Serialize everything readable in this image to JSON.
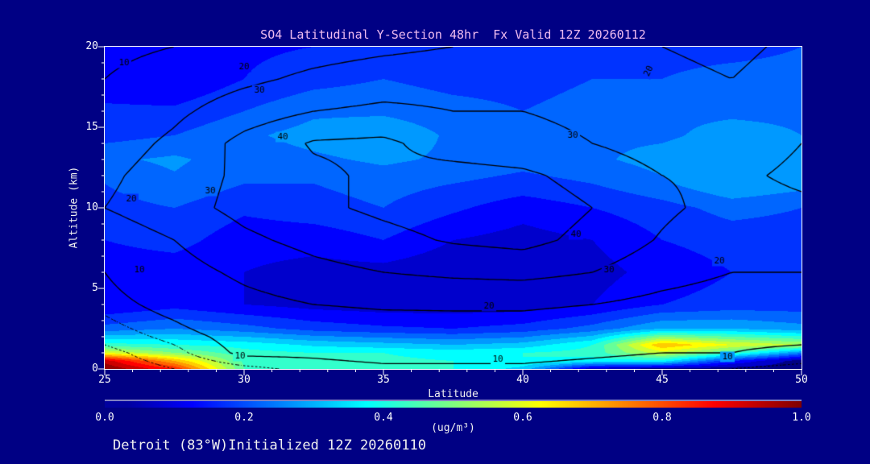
{
  "colors": {
    "background": "#000084",
    "title": "#F0BCF0",
    "text": "#F0F0F0",
    "frame": "#FFFFFF",
    "contour_line": "#000000"
  },
  "header": {
    "title": "SO4 Latitudinal Y-Section 48hr  Fx Valid 12Z 20260112"
  },
  "footer": {
    "text": "Detroit (83°W)Initialized 12Z 20260110"
  },
  "chart_data": {
    "type": "heatmap",
    "title": "SO4 Latitudinal Y-Section 48hr  Fx Valid 12Z 20260112",
    "xlabel": "Latitude",
    "ylabel": "Altitude (km)",
    "xlim": [
      25,
      50
    ],
    "ylim": [
      0,
      20
    ],
    "x_ticks": [
      "25",
      "30",
      "35",
      "40",
      "45",
      "50"
    ],
    "x_tick_values": [
      25,
      30,
      35,
      40,
      45,
      50
    ],
    "x_minor_step": 1,
    "y_ticks": [
      "0",
      "5",
      "10",
      "15",
      "20"
    ],
    "y_tick_values": [
      0,
      5,
      10,
      15,
      20
    ],
    "y_minor_step": 1,
    "grid": false,
    "colorbar": {
      "min": 0.0,
      "max": 1.0,
      "ticks": [
        "0.0",
        "0.2",
        "0.4",
        "0.6",
        "0.8",
        "1.0"
      ],
      "tick_values": [
        0.0,
        0.2,
        0.4,
        0.6,
        0.8,
        1.0
      ],
      "units": "(ug/m³)",
      "palette": "jet"
    },
    "fill_field": {
      "comment_units": "SO4 concentration ug/m3, jet colormap 0-1, bottom-right low values = terrain mask",
      "lats": [
        25,
        27.5,
        30,
        32.5,
        35,
        37.5,
        40,
        42.5,
        45,
        47.5,
        50
      ],
      "alts": [
        0,
        0.5,
        1,
        1.5,
        2.5,
        4,
        6,
        8,
        10,
        11.5,
        13,
        14.5,
        16,
        18,
        20
      ],
      "values": [
        [
          1.0,
          0.85,
          0.45,
          0.42,
          0.41,
          0.4,
          0.33,
          0.06,
          0.02,
          0.02,
          0.02
        ],
        [
          0.93,
          0.7,
          0.44,
          0.42,
          0.41,
          0.4,
          0.4,
          0.38,
          0.38,
          0.15,
          0.02
        ],
        [
          0.6,
          0.5,
          0.42,
          0.4,
          0.4,
          0.38,
          0.4,
          0.42,
          0.58,
          0.44,
          0.25
        ],
        [
          0.42,
          0.4,
          0.38,
          0.34,
          0.32,
          0.3,
          0.32,
          0.4,
          0.7,
          0.6,
          0.55
        ],
        [
          0.22,
          0.25,
          0.22,
          0.18,
          0.16,
          0.15,
          0.17,
          0.22,
          0.3,
          0.3,
          0.27
        ],
        [
          0.1,
          0.13,
          0.1,
          0.08,
          0.07,
          0.07,
          0.07,
          0.1,
          0.15,
          0.17,
          0.17
        ],
        [
          0.12,
          0.12,
          0.1,
          0.08,
          0.08,
          0.06,
          0.06,
          0.08,
          0.12,
          0.15,
          0.15
        ],
        [
          0.15,
          0.17,
          0.12,
          0.12,
          0.15,
          0.1,
          0.08,
          0.1,
          0.15,
          0.17,
          0.17
        ],
        [
          0.18,
          0.2,
          0.16,
          0.18,
          0.2,
          0.16,
          0.12,
          0.15,
          0.18,
          0.22,
          0.2
        ],
        [
          0.2,
          0.24,
          0.2,
          0.2,
          0.22,
          0.2,
          0.18,
          0.2,
          0.24,
          0.3,
          0.27
        ],
        [
          0.24,
          0.26,
          0.22,
          0.24,
          0.26,
          0.24,
          0.22,
          0.24,
          0.27,
          0.3,
          0.29
        ],
        [
          0.18,
          0.2,
          0.24,
          0.27,
          0.29,
          0.24,
          0.24,
          0.24,
          0.24,
          0.27,
          0.25
        ],
        [
          0.16,
          0.16,
          0.2,
          0.24,
          0.24,
          0.22,
          0.2,
          0.22,
          0.24,
          0.24,
          0.24
        ],
        [
          0.12,
          0.1,
          0.15,
          0.18,
          0.2,
          0.18,
          0.18,
          0.2,
          0.2,
          0.22,
          0.22
        ],
        [
          0.1,
          0.1,
          0.14,
          0.15,
          0.16,
          0.16,
          0.16,
          0.18,
          0.18,
          0.18,
          0.2
        ]
      ]
    },
    "contour_field": {
      "lats": [
        25,
        27.5,
        30,
        32.5,
        35,
        37.5,
        40,
        42.5,
        45,
        47.5,
        50
      ],
      "alts": [
        0,
        1,
        2,
        4,
        6,
        8,
        10,
        12,
        14,
        16,
        18,
        20
      ],
      "values": [
        [
          2,
          4,
          6,
          8,
          9,
          9,
          9,
          8,
          7,
          7,
          6
        ],
        [
          3,
          6,
          11,
          11,
          12,
          12,
          12,
          11,
          10,
          10,
          9
        ],
        [
          5,
          8,
          12,
          14,
          15,
          16,
          16,
          15,
          13,
          11,
          11
        ],
        [
          8,
          12,
          17,
          20,
          21,
          21,
          21,
          20,
          17,
          15,
          15
        ],
        [
          10,
          16,
          22,
          27,
          30,
          32,
          33,
          30,
          24,
          20,
          20
        ],
        [
          14,
          20,
          28,
          33,
          37,
          41,
          43,
          37,
          29,
          22,
          24
        ],
        [
          20,
          26,
          33,
          38,
          42,
          45,
          46,
          40,
          32,
          26,
          28
        ],
        [
          18,
          25,
          32,
          38,
          42,
          44,
          42,
          36,
          30,
          28,
          32
        ],
        [
          15,
          22,
          33,
          41,
          42,
          35,
          33,
          30,
          26,
          25,
          30
        ],
        [
          12,
          18,
          25,
          30,
          32,
          30,
          30,
          28,
          24,
          22,
          26
        ],
        [
          10,
          14,
          18,
          22,
          25,
          26,
          26,
          25,
          22,
          20,
          24
        ],
        [
          8,
          10,
          14,
          16,
          18,
          20,
          22,
          22,
          20,
          18,
          22
        ]
      ]
    },
    "contour_levels_solid": [
      10,
      20,
      30,
      40
    ],
    "contour_levels_dotted": [
      4,
      7
    ],
    "contour_labels": [
      {
        "text": "10",
        "lat": 25.7,
        "alt": 19.0
      },
      {
        "text": "20",
        "lat": 30.0,
        "alt": 18.75
      },
      {
        "text": "30",
        "lat": 30.55,
        "alt": 17.3
      },
      {
        "text": "40",
        "lat": 31.4,
        "alt": 14.4
      },
      {
        "text": "20",
        "lat": 44.5,
        "alt": 18.5,
        "rot": -65
      },
      {
        "text": "30",
        "lat": 41.8,
        "alt": 14.5
      },
      {
        "text": "30",
        "lat": 28.8,
        "alt": 11.05
      },
      {
        "text": "20",
        "lat": 25.95,
        "alt": 10.55
      },
      {
        "text": "10",
        "lat": 26.25,
        "alt": 6.15
      },
      {
        "text": "40",
        "lat": 41.9,
        "alt": 8.35
      },
      {
        "text": "30",
        "lat": 43.1,
        "alt": 6.15
      },
      {
        "text": "20",
        "lat": 47.05,
        "alt": 6.7
      },
      {
        "text": "20",
        "lat": 38.8,
        "alt": 3.9
      },
      {
        "text": "10",
        "lat": 29.85,
        "alt": 0.8
      },
      {
        "text": "10",
        "lat": 39.1,
        "alt": 0.6
      },
      {
        "text": "10",
        "lat": 47.35,
        "alt": 0.75
      }
    ]
  }
}
